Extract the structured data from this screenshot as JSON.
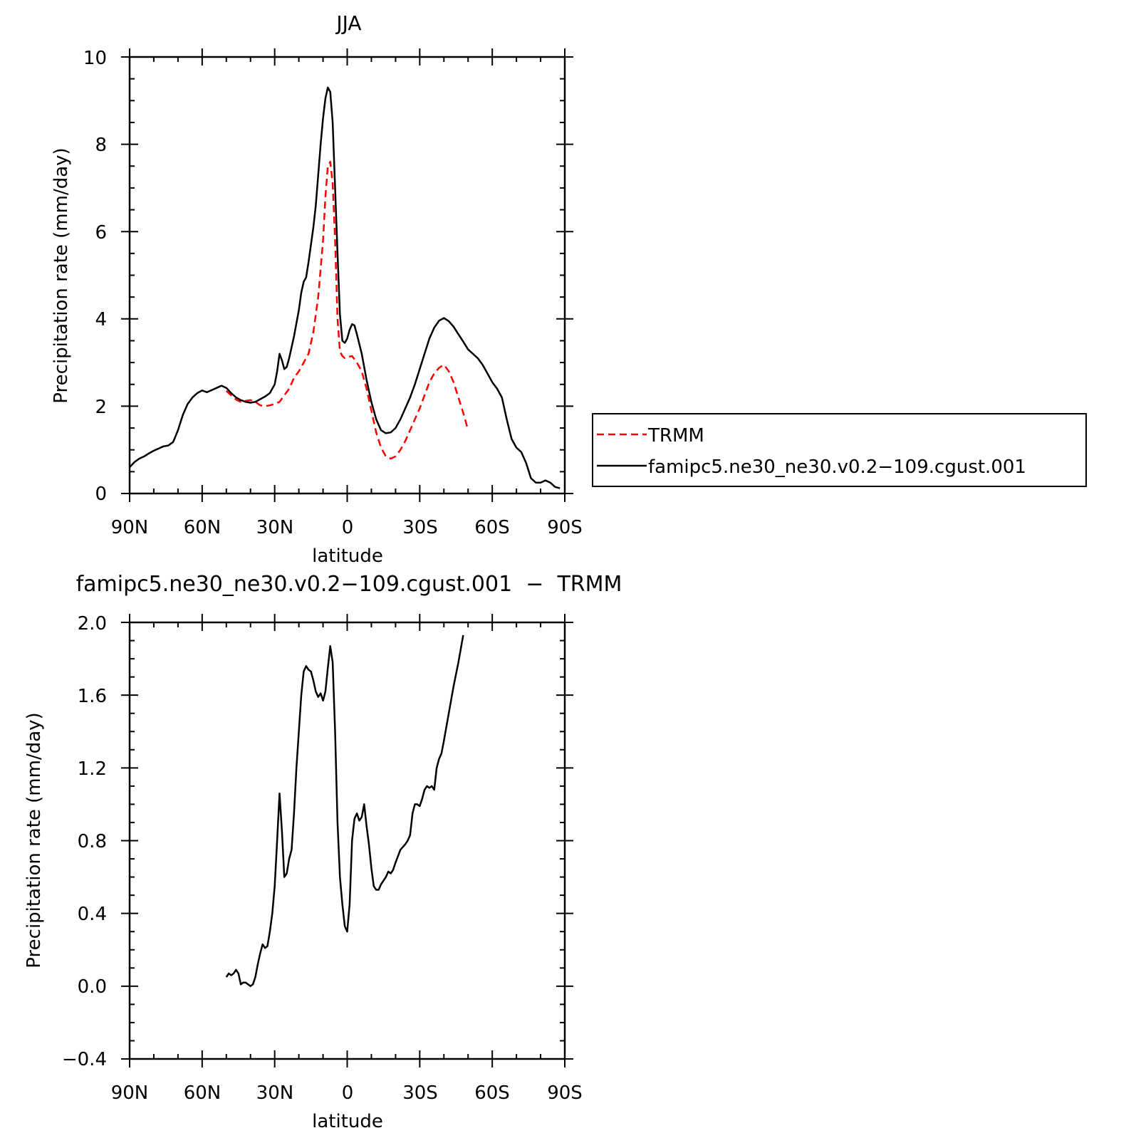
{
  "chart_data": [
    {
      "type": "line",
      "title": "JJA",
      "xlabel": "latitude",
      "ylabel": "Precipitation rate (mm/day)",
      "xlim": [
        90,
        -90
      ],
      "ylim": [
        0,
        10
      ],
      "x_ticks": [
        {
          "value": 90,
          "label": "90N"
        },
        {
          "value": 60,
          "label": "60N"
        },
        {
          "value": 30,
          "label": "30N"
        },
        {
          "value": 0,
          "label": "0"
        },
        {
          "value": -30,
          "label": "30S"
        },
        {
          "value": -60,
          "label": "60S"
        },
        {
          "value": -90,
          "label": "90S"
        }
      ],
      "y_ticks": [
        {
          "value": 0,
          "label": "0"
        },
        {
          "value": 2,
          "label": "2"
        },
        {
          "value": 4,
          "label": "4"
        },
        {
          "value": 6,
          "label": "6"
        },
        {
          "value": 8,
          "label": "8"
        },
        {
          "value": 10,
          "label": "10"
        }
      ],
      "legend": {
        "placement": "right",
        "entries": [
          "TRMM",
          "famipc5.ne30_ne30.v0.2−109.cgust.001"
        ]
      },
      "series": [
        {
          "name": "TRMM",
          "color": "#ff0000",
          "dash": true,
          "points": [
            [
              50,
              2.35
            ],
            [
              48,
              2.25
            ],
            [
              46,
              2.15
            ],
            [
              44,
              2.1
            ],
            [
              42,
              2.12
            ],
            [
              40,
              2.14
            ],
            [
              38,
              2.1
            ],
            [
              36,
              2.02
            ],
            [
              34,
              2.0
            ],
            [
              32,
              2.02
            ],
            [
              30,
              2.05
            ],
            [
              28,
              2.1
            ],
            [
              26,
              2.25
            ],
            [
              24,
              2.4
            ],
            [
              22,
              2.65
            ],
            [
              20,
              2.8
            ],
            [
              18,
              3.0
            ],
            [
              16,
              3.2
            ],
            [
              14,
              3.7
            ],
            [
              12,
              4.5
            ],
            [
              10,
              5.8
            ],
            [
              9,
              6.8
            ],
            [
              8,
              7.5
            ],
            [
              7,
              7.6
            ],
            [
              6,
              7.1
            ],
            [
              5,
              5.8
            ],
            [
              4,
              4.0
            ],
            [
              3,
              3.25
            ],
            [
              2,
              3.15
            ],
            [
              1,
              3.1
            ],
            [
              0,
              3.12
            ],
            [
              -2,
              3.15
            ],
            [
              -4,
              3.0
            ],
            [
              -6,
              2.8
            ],
            [
              -8,
              2.4
            ],
            [
              -10,
              1.9
            ],
            [
              -12,
              1.4
            ],
            [
              -14,
              1.05
            ],
            [
              -16,
              0.85
            ],
            [
              -18,
              0.8
            ],
            [
              -20,
              0.85
            ],
            [
              -22,
              1.0
            ],
            [
              -24,
              1.2
            ],
            [
              -26,
              1.45
            ],
            [
              -28,
              1.7
            ],
            [
              -30,
              1.95
            ],
            [
              -32,
              2.25
            ],
            [
              -34,
              2.55
            ],
            [
              -36,
              2.75
            ],
            [
              -38,
              2.88
            ],
            [
              -40,
              2.95
            ],
            [
              -42,
              2.8
            ],
            [
              -44,
              2.55
            ],
            [
              -46,
              2.2
            ],
            [
              -48,
              1.85
            ],
            [
              -50,
              1.45
            ]
          ]
        },
        {
          "name": "famipc5.ne30_ne30.v0.2−109.cgust.001",
          "color": "#000000",
          "dash": false,
          "points": [
            [
              90,
              0.6
            ],
            [
              88,
              0.72
            ],
            [
              86,
              0.8
            ],
            [
              84,
              0.85
            ],
            [
              82,
              0.92
            ],
            [
              80,
              0.98
            ],
            [
              78,
              1.03
            ],
            [
              76,
              1.08
            ],
            [
              74,
              1.1
            ],
            [
              72,
              1.18
            ],
            [
              70,
              1.45
            ],
            [
              68,
              1.8
            ],
            [
              66,
              2.05
            ],
            [
              64,
              2.2
            ],
            [
              62,
              2.3
            ],
            [
              60,
              2.36
            ],
            [
              58,
              2.32
            ],
            [
              56,
              2.37
            ],
            [
              54,
              2.42
            ],
            [
              52,
              2.47
            ],
            [
              50,
              2.42
            ],
            [
              48,
              2.3
            ],
            [
              46,
              2.2
            ],
            [
              44,
              2.14
            ],
            [
              42,
              2.1
            ],
            [
              40,
              2.08
            ],
            [
              38,
              2.1
            ],
            [
              36,
              2.16
            ],
            [
              34,
              2.22
            ],
            [
              32,
              2.3
            ],
            [
              30,
              2.5
            ],
            [
              29,
              2.8
            ],
            [
              28,
              3.2
            ],
            [
              27,
              3.05
            ],
            [
              26,
              2.85
            ],
            [
              25,
              2.9
            ],
            [
              24,
              3.1
            ],
            [
              22,
              3.6
            ],
            [
              20,
              4.2
            ],
            [
              19,
              4.6
            ],
            [
              18,
              4.85
            ],
            [
              17,
              4.95
            ],
            [
              16,
              5.3
            ],
            [
              15,
              5.7
            ],
            [
              14,
              6.1
            ],
            [
              13,
              6.6
            ],
            [
              12,
              7.3
            ],
            [
              11,
              8.0
            ],
            [
              10,
              8.6
            ],
            [
              9,
              9.05
            ],
            [
              8,
              9.3
            ],
            [
              7,
              9.2
            ],
            [
              6,
              8.5
            ],
            [
              5,
              7.0
            ],
            [
              4,
              5.5
            ],
            [
              3,
              4.1
            ],
            [
              2,
              3.5
            ],
            [
              1,
              3.45
            ],
            [
              0,
              3.55
            ],
            [
              -1,
              3.75
            ],
            [
              -2,
              3.88
            ],
            [
              -3,
              3.85
            ],
            [
              -4,
              3.65
            ],
            [
              -6,
              3.2
            ],
            [
              -8,
              2.6
            ],
            [
              -10,
              2.1
            ],
            [
              -12,
              1.7
            ],
            [
              -14,
              1.45
            ],
            [
              -16,
              1.38
            ],
            [
              -18,
              1.4
            ],
            [
              -20,
              1.5
            ],
            [
              -22,
              1.7
            ],
            [
              -24,
              1.95
            ],
            [
              -26,
              2.2
            ],
            [
              -28,
              2.5
            ],
            [
              -30,
              2.85
            ],
            [
              -32,
              3.2
            ],
            [
              -34,
              3.55
            ],
            [
              -36,
              3.8
            ],
            [
              -38,
              3.96
            ],
            [
              -40,
              4.02
            ],
            [
              -42,
              3.95
            ],
            [
              -44,
              3.82
            ],
            [
              -46,
              3.65
            ],
            [
              -48,
              3.48
            ],
            [
              -50,
              3.3
            ],
            [
              -52,
              3.2
            ],
            [
              -54,
              3.1
            ],
            [
              -56,
              2.95
            ],
            [
              -58,
              2.75
            ],
            [
              -60,
              2.55
            ],
            [
              -62,
              2.4
            ],
            [
              -64,
              2.2
            ],
            [
              -66,
              1.7
            ],
            [
              -68,
              1.25
            ],
            [
              -70,
              1.05
            ],
            [
              -72,
              0.95
            ],
            [
              -74,
              0.7
            ],
            [
              -76,
              0.35
            ],
            [
              -78,
              0.25
            ],
            [
              -80,
              0.25
            ],
            [
              -82,
              0.3
            ],
            [
              -84,
              0.25
            ],
            [
              -86,
              0.15
            ],
            [
              -88,
              0.12
            ]
          ]
        }
      ]
    },
    {
      "type": "line",
      "title": "famipc5.ne30_ne30.v0.2−109.cgust.001  −  TRMM",
      "xlabel": "latitude",
      "ylabel": "Precipitation rate (mm/day)",
      "xlim": [
        90,
        -90
      ],
      "ylim": [
        -0.4,
        2.0
      ],
      "x_ticks": [
        {
          "value": 90,
          "label": "90N"
        },
        {
          "value": 60,
          "label": "60N"
        },
        {
          "value": 30,
          "label": "30N"
        },
        {
          "value": 0,
          "label": "0"
        },
        {
          "value": -30,
          "label": "30S"
        },
        {
          "value": -60,
          "label": "60S"
        },
        {
          "value": -90,
          "label": "90S"
        }
      ],
      "y_ticks": [
        {
          "value": -0.4,
          "label": "−0.4"
        },
        {
          "value": 0.0,
          "label": "0.0"
        },
        {
          "value": 0.4,
          "label": "0.4"
        },
        {
          "value": 0.8,
          "label": "0.8"
        },
        {
          "value": 1.2,
          "label": "1.2"
        },
        {
          "value": 1.6,
          "label": "1.6"
        },
        {
          "value": 2.0,
          "label": "2.0"
        }
      ],
      "series": [
        {
          "name": "famipc5.ne30_ne30.v0.2−109.cgust.001 − TRMM",
          "color": "#000000",
          "dash": false,
          "points": [
            [
              50,
              0.05
            ],
            [
              49,
              0.07
            ],
            [
              48,
              0.06
            ],
            [
              47,
              0.07
            ],
            [
              46,
              0.09
            ],
            [
              45,
              0.07
            ],
            [
              44,
              0.01
            ],
            [
              43,
              0.02
            ],
            [
              42,
              0.02
            ],
            [
              41,
              0.01
            ],
            [
              40,
              0.0
            ],
            [
              39,
              0.01
            ],
            [
              38,
              0.05
            ],
            [
              37,
              0.12
            ],
            [
              36,
              0.18
            ],
            [
              35,
              0.23
            ],
            [
              34,
              0.21
            ],
            [
              33,
              0.22
            ],
            [
              32,
              0.3
            ],
            [
              31,
              0.4
            ],
            [
              30,
              0.55
            ],
            [
              29,
              0.8
            ],
            [
              28,
              1.06
            ],
            [
              27,
              0.85
            ],
            [
              26,
              0.6
            ],
            [
              25,
              0.62
            ],
            [
              24,
              0.7
            ],
            [
              23,
              0.75
            ],
            [
              22,
              0.95
            ],
            [
              21,
              1.2
            ],
            [
              20,
              1.4
            ],
            [
              19,
              1.6
            ],
            [
              18,
              1.73
            ],
            [
              17,
              1.76
            ],
            [
              16,
              1.74
            ],
            [
              15,
              1.73
            ],
            [
              14,
              1.68
            ],
            [
              13,
              1.62
            ],
            [
              12,
              1.59
            ],
            [
              11,
              1.61
            ],
            [
              10,
              1.57
            ],
            [
              9,
              1.62
            ],
            [
              8,
              1.75
            ],
            [
              7,
              1.87
            ],
            [
              6,
              1.78
            ],
            [
              5,
              1.4
            ],
            [
              4,
              0.9
            ],
            [
              3,
              0.6
            ],
            [
              2,
              0.45
            ],
            [
              1,
              0.33
            ],
            [
              0,
              0.3
            ],
            [
              -1,
              0.45
            ],
            [
              -2,
              0.8
            ],
            [
              -3,
              0.92
            ],
            [
              -4,
              0.95
            ],
            [
              -5,
              0.91
            ],
            [
              -6,
              0.93
            ],
            [
              -7,
              1.0
            ],
            [
              -8,
              0.88
            ],
            [
              -9,
              0.78
            ],
            [
              -10,
              0.65
            ],
            [
              -11,
              0.55
            ],
            [
              -12,
              0.53
            ],
            [
              -13,
              0.53
            ],
            [
              -14,
              0.56
            ],
            [
              -15,
              0.58
            ],
            [
              -16,
              0.6
            ],
            [
              -17,
              0.63
            ],
            [
              -18,
              0.62
            ],
            [
              -19,
              0.64
            ],
            [
              -20,
              0.68
            ],
            [
              -22,
              0.75
            ],
            [
              -24,
              0.78
            ],
            [
              -25,
              0.8
            ],
            [
              -26,
              0.83
            ],
            [
              -27,
              0.95
            ],
            [
              -28,
              1.0
            ],
            [
              -29,
              1.0
            ],
            [
              -30,
              0.99
            ],
            [
              -31,
              1.03
            ],
            [
              -32,
              1.08
            ],
            [
              -33,
              1.1
            ],
            [
              -34,
              1.09
            ],
            [
              -35,
              1.1
            ],
            [
              -36,
              1.08
            ],
            [
              -37,
              1.2
            ],
            [
              -38,
              1.25
            ],
            [
              -39,
              1.28
            ],
            [
              -40,
              1.35
            ],
            [
              -42,
              1.5
            ],
            [
              -44,
              1.65
            ],
            [
              -46,
              1.78
            ],
            [
              -48,
              1.93
            ]
          ]
        }
      ]
    }
  ]
}
